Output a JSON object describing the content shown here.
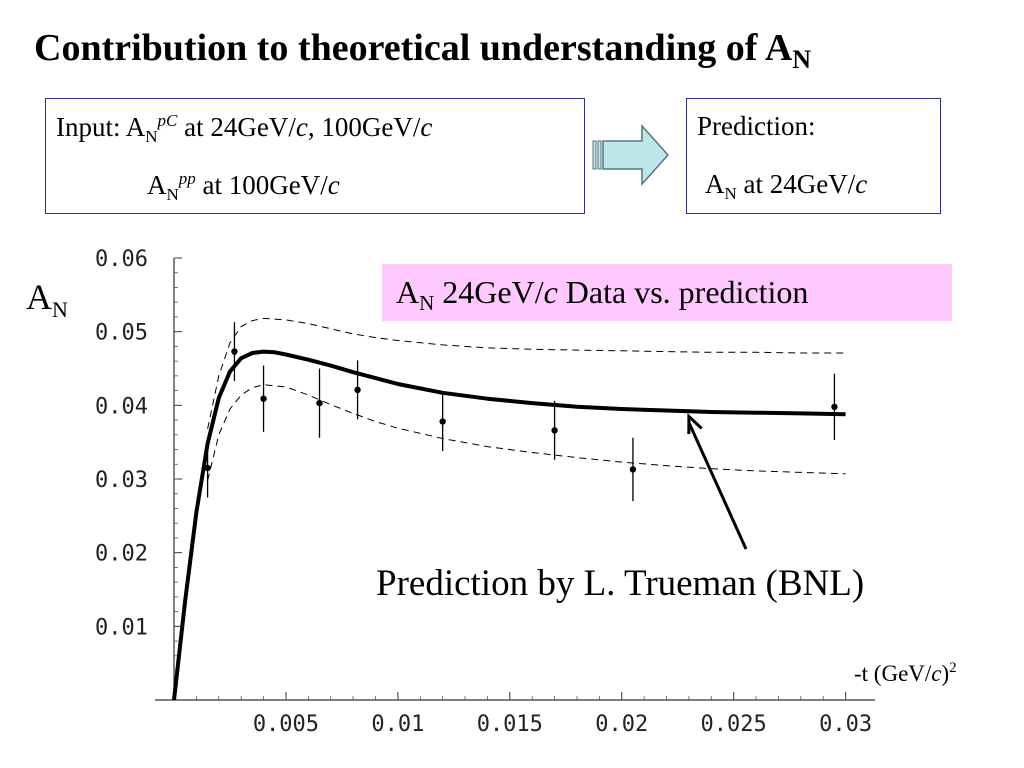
{
  "slide": {
    "title": "Contribution to theoretical understanding of A",
    "title_sub": "N"
  },
  "input_box": {
    "label": "Input:",
    "line1": {
      "A": "A",
      "sub": "N",
      "sup": "pC",
      "text_a": " at 24GeV/",
      "c1": "c",
      "text_b": ", 100GeV/",
      "c2": "c"
    },
    "line2": {
      "A": "A",
      "sub": "N",
      "sup": "pp",
      "text_a": " at 100GeV/",
      "c1": "c"
    }
  },
  "prediction_box": {
    "label": "Prediction:",
    "A": "A",
    "sub": "N",
    "text": " at 24GeV/",
    "c": "c"
  },
  "arrow": {
    "icon": "block-arrow-right-icon",
    "fill": "#bfe6ea",
    "stroke": "#55777c"
  },
  "legend": {
    "A": "A",
    "sub": "N",
    "text_a": " 24GeV/",
    "c": "c",
    "text_b": " Data vs. prediction",
    "background": "#ffc8ff"
  },
  "annotation": {
    "text": "Prediction by L. Trueman (BNL)"
  },
  "chart_data": {
    "type": "line",
    "ylabel": "A",
    "ylabel_sub": "N",
    "xlabel": "-t (GeV/",
    "xlabel_c": "c",
    "xlabel_tail": ")",
    "xlabel_sup": "2",
    "xlim": [
      0.0,
      0.031
    ],
    "ylim": [
      0.0,
      0.06
    ],
    "xticks": [
      "0.005",
      "0.01",
      "0.015",
      "0.02",
      "0.025",
      "0.03"
    ],
    "xtick_values": [
      0.005,
      0.01,
      0.015,
      0.02,
      0.025,
      0.03
    ],
    "yticks": [
      "0.01",
      "0.02",
      "0.03",
      "0.04",
      "0.05",
      "0.06"
    ],
    "ytick_values": [
      0.01,
      0.02,
      0.03,
      0.04,
      0.05,
      0.06
    ],
    "grid": false,
    "data_points": [
      {
        "x": 0.0015,
        "y": 0.0315,
        "err": 0.004
      },
      {
        "x": 0.0027,
        "y": 0.0473,
        "err": 0.004
      },
      {
        "x": 0.004,
        "y": 0.0409,
        "err": 0.0045
      },
      {
        "x": 0.0065,
        "y": 0.0403,
        "err": 0.0047
      },
      {
        "x": 0.0082,
        "y": 0.0421,
        "err": 0.004
      },
      {
        "x": 0.012,
        "y": 0.0378,
        "err": 0.004
      },
      {
        "x": 0.017,
        "y": 0.0366,
        "err": 0.004
      },
      {
        "x": 0.0205,
        "y": 0.0313,
        "err": 0.0043
      },
      {
        "x": 0.0295,
        "y": 0.0398,
        "err": 0.0045
      }
    ],
    "series": [
      {
        "style": "solid-thick",
        "x": [
          0.0,
          0.0005,
          0.001,
          0.0015,
          0.002,
          0.0025,
          0.003,
          0.0035,
          0.004,
          0.0045,
          0.005,
          0.006,
          0.007,
          0.008,
          0.009,
          0.01,
          0.012,
          0.014,
          0.016,
          0.018,
          0.02,
          0.022,
          0.024,
          0.026,
          0.028,
          0.03
        ],
        "y": [
          0.0,
          0.0135,
          0.0255,
          0.0348,
          0.041,
          0.0446,
          0.0464,
          0.0471,
          0.0473,
          0.0472,
          0.0469,
          0.0462,
          0.0454,
          0.0445,
          0.0437,
          0.0429,
          0.0417,
          0.0409,
          0.0403,
          0.0398,
          0.0395,
          0.0393,
          0.0391,
          0.039,
          0.0389,
          0.0388
        ]
      },
      {
        "style": "dashed",
        "x": [
          0.0015,
          0.002,
          0.0025,
          0.003,
          0.0035,
          0.004,
          0.005,
          0.006,
          0.007,
          0.008,
          0.009,
          0.01,
          0.012,
          0.014,
          0.016,
          0.018,
          0.02,
          0.022,
          0.024,
          0.026,
          0.028,
          0.03
        ],
        "y": [
          0.0368,
          0.044,
          0.0485,
          0.0507,
          0.0515,
          0.0518,
          0.0516,
          0.0511,
          0.0504,
          0.0497,
          0.0492,
          0.0488,
          0.0482,
          0.0478,
          0.0476,
          0.0475,
          0.0474,
          0.0473,
          0.0472,
          0.0472,
          0.0471,
          0.0471
        ]
      },
      {
        "style": "dashed",
        "x": [
          0.0015,
          0.002,
          0.0025,
          0.003,
          0.0035,
          0.004,
          0.005,
          0.006,
          0.007,
          0.008,
          0.009,
          0.01,
          0.012,
          0.014,
          0.016,
          0.018,
          0.02,
          0.022,
          0.024,
          0.026,
          0.028,
          0.03
        ],
        "y": [
          0.0298,
          0.036,
          0.0395,
          0.0414,
          0.0424,
          0.0428,
          0.0425,
          0.0414,
          0.0401,
          0.0389,
          0.0378,
          0.0369,
          0.0355,
          0.0344,
          0.0336,
          0.0329,
          0.0323,
          0.0318,
          0.0314,
          0.0311,
          0.0309,
          0.0307
        ]
      }
    ],
    "annotation_arrow": {
      "text": "Prediction by L. Trueman (BNL)",
      "points_to_x": 0.023
    }
  }
}
